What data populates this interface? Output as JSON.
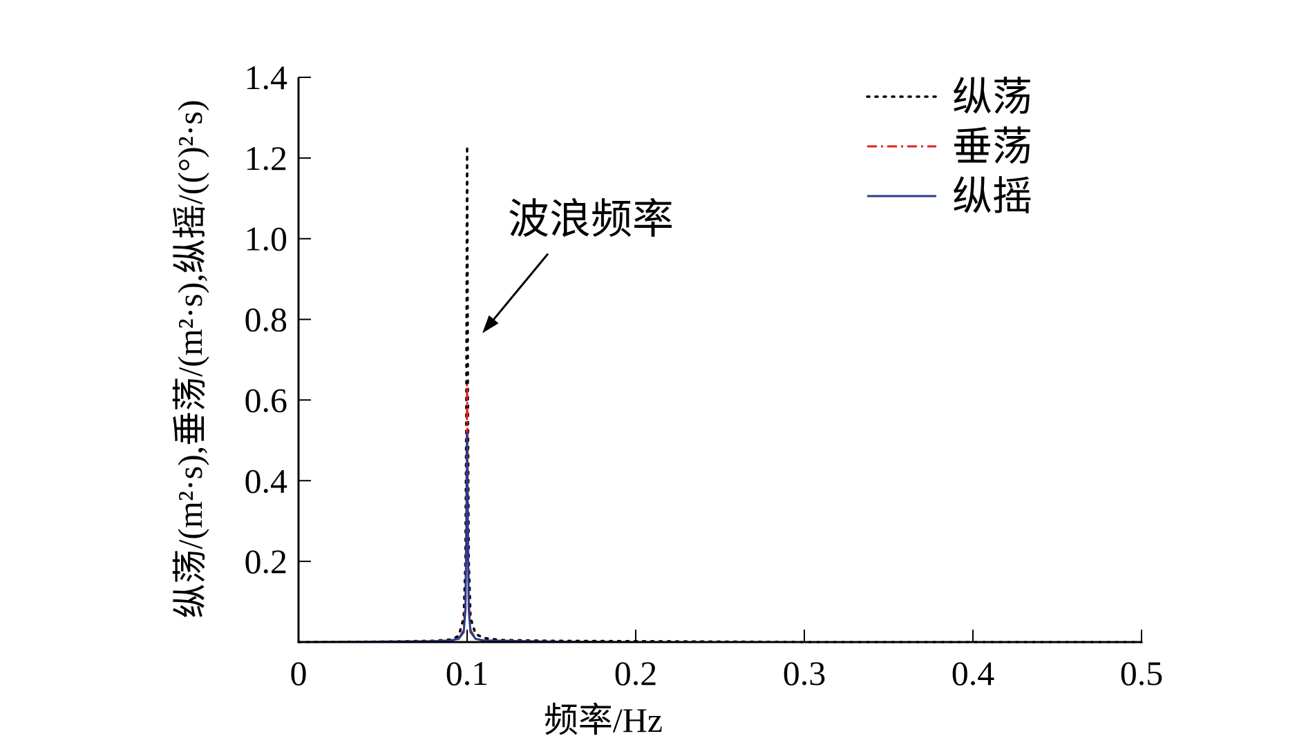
{
  "chart_data": {
    "type": "line",
    "xlabel": "频率/Hz",
    "ylabel": "纵荡/(m²·s),垂荡/(m²·s),纵摇/((°)²·s)",
    "xlim": [
      0,
      0.5
    ],
    "ylim": [
      0,
      1.4
    ],
    "x_ticks": [
      0,
      0.1,
      0.2,
      0.3,
      0.4,
      0.5
    ],
    "x_tick_labels": [
      "0",
      "0.1",
      "0.2",
      "0.3",
      "0.4",
      "0.5"
    ],
    "y_ticks": [
      0.2,
      0.4,
      0.6,
      0.8,
      1.0,
      1.2,
      1.4
    ],
    "y_tick_labels": [
      "0.2",
      "0.4",
      "0.6",
      "0.8",
      "1.0",
      "1.2",
      "1.4"
    ],
    "grid": false,
    "legend_position": "top-right",
    "annotation": {
      "text": "波浪频率",
      "arrow_to": [
        0.1,
        0.8
      ]
    },
    "series": [
      {
        "name": "纵荡",
        "color": "#000000",
        "dash": "dotted",
        "x": [
          0.0,
          0.05,
          0.08,
          0.09,
          0.095,
          0.098,
          0.099,
          0.0995,
          0.1,
          0.1005,
          0.101,
          0.102,
          0.105,
          0.11,
          0.12,
          0.15,
          0.2,
          0.25,
          0.3,
          0.4,
          0.5
        ],
        "y": [
          0.0,
          0.001,
          0.003,
          0.006,
          0.015,
          0.06,
          0.2,
          0.55,
          1.23,
          0.55,
          0.2,
          0.06,
          0.02,
          0.01,
          0.005,
          0.003,
          0.002,
          0.001,
          0.0,
          0.0,
          0.0
        ]
      },
      {
        "name": "垂荡",
        "color": "#e02020",
        "dash": "dashdot",
        "x": [
          0.0,
          0.05,
          0.08,
          0.09,
          0.095,
          0.098,
          0.099,
          0.0995,
          0.1,
          0.1005,
          0.101,
          0.102,
          0.105,
          0.11,
          0.15,
          0.2,
          0.3,
          0.4,
          0.5
        ],
        "y": [
          0.0,
          0.001,
          0.002,
          0.004,
          0.008,
          0.03,
          0.1,
          0.3,
          0.64,
          0.3,
          0.1,
          0.03,
          0.008,
          0.004,
          0.001,
          0.0,
          0.0,
          0.0,
          0.0
        ]
      },
      {
        "name": "纵摇",
        "color": "#2b3a8c",
        "dash": "solid",
        "x": [
          0.0,
          0.05,
          0.08,
          0.09,
          0.095,
          0.098,
          0.099,
          0.0995,
          0.1,
          0.1005,
          0.101,
          0.102,
          0.105,
          0.11,
          0.15,
          0.2,
          0.3,
          0.4,
          0.5
        ],
        "y": [
          0.0,
          0.001,
          0.002,
          0.004,
          0.008,
          0.025,
          0.08,
          0.25,
          0.52,
          0.25,
          0.08,
          0.025,
          0.008,
          0.004,
          0.001,
          0.0,
          0.0,
          0.0,
          0.0
        ]
      }
    ]
  }
}
